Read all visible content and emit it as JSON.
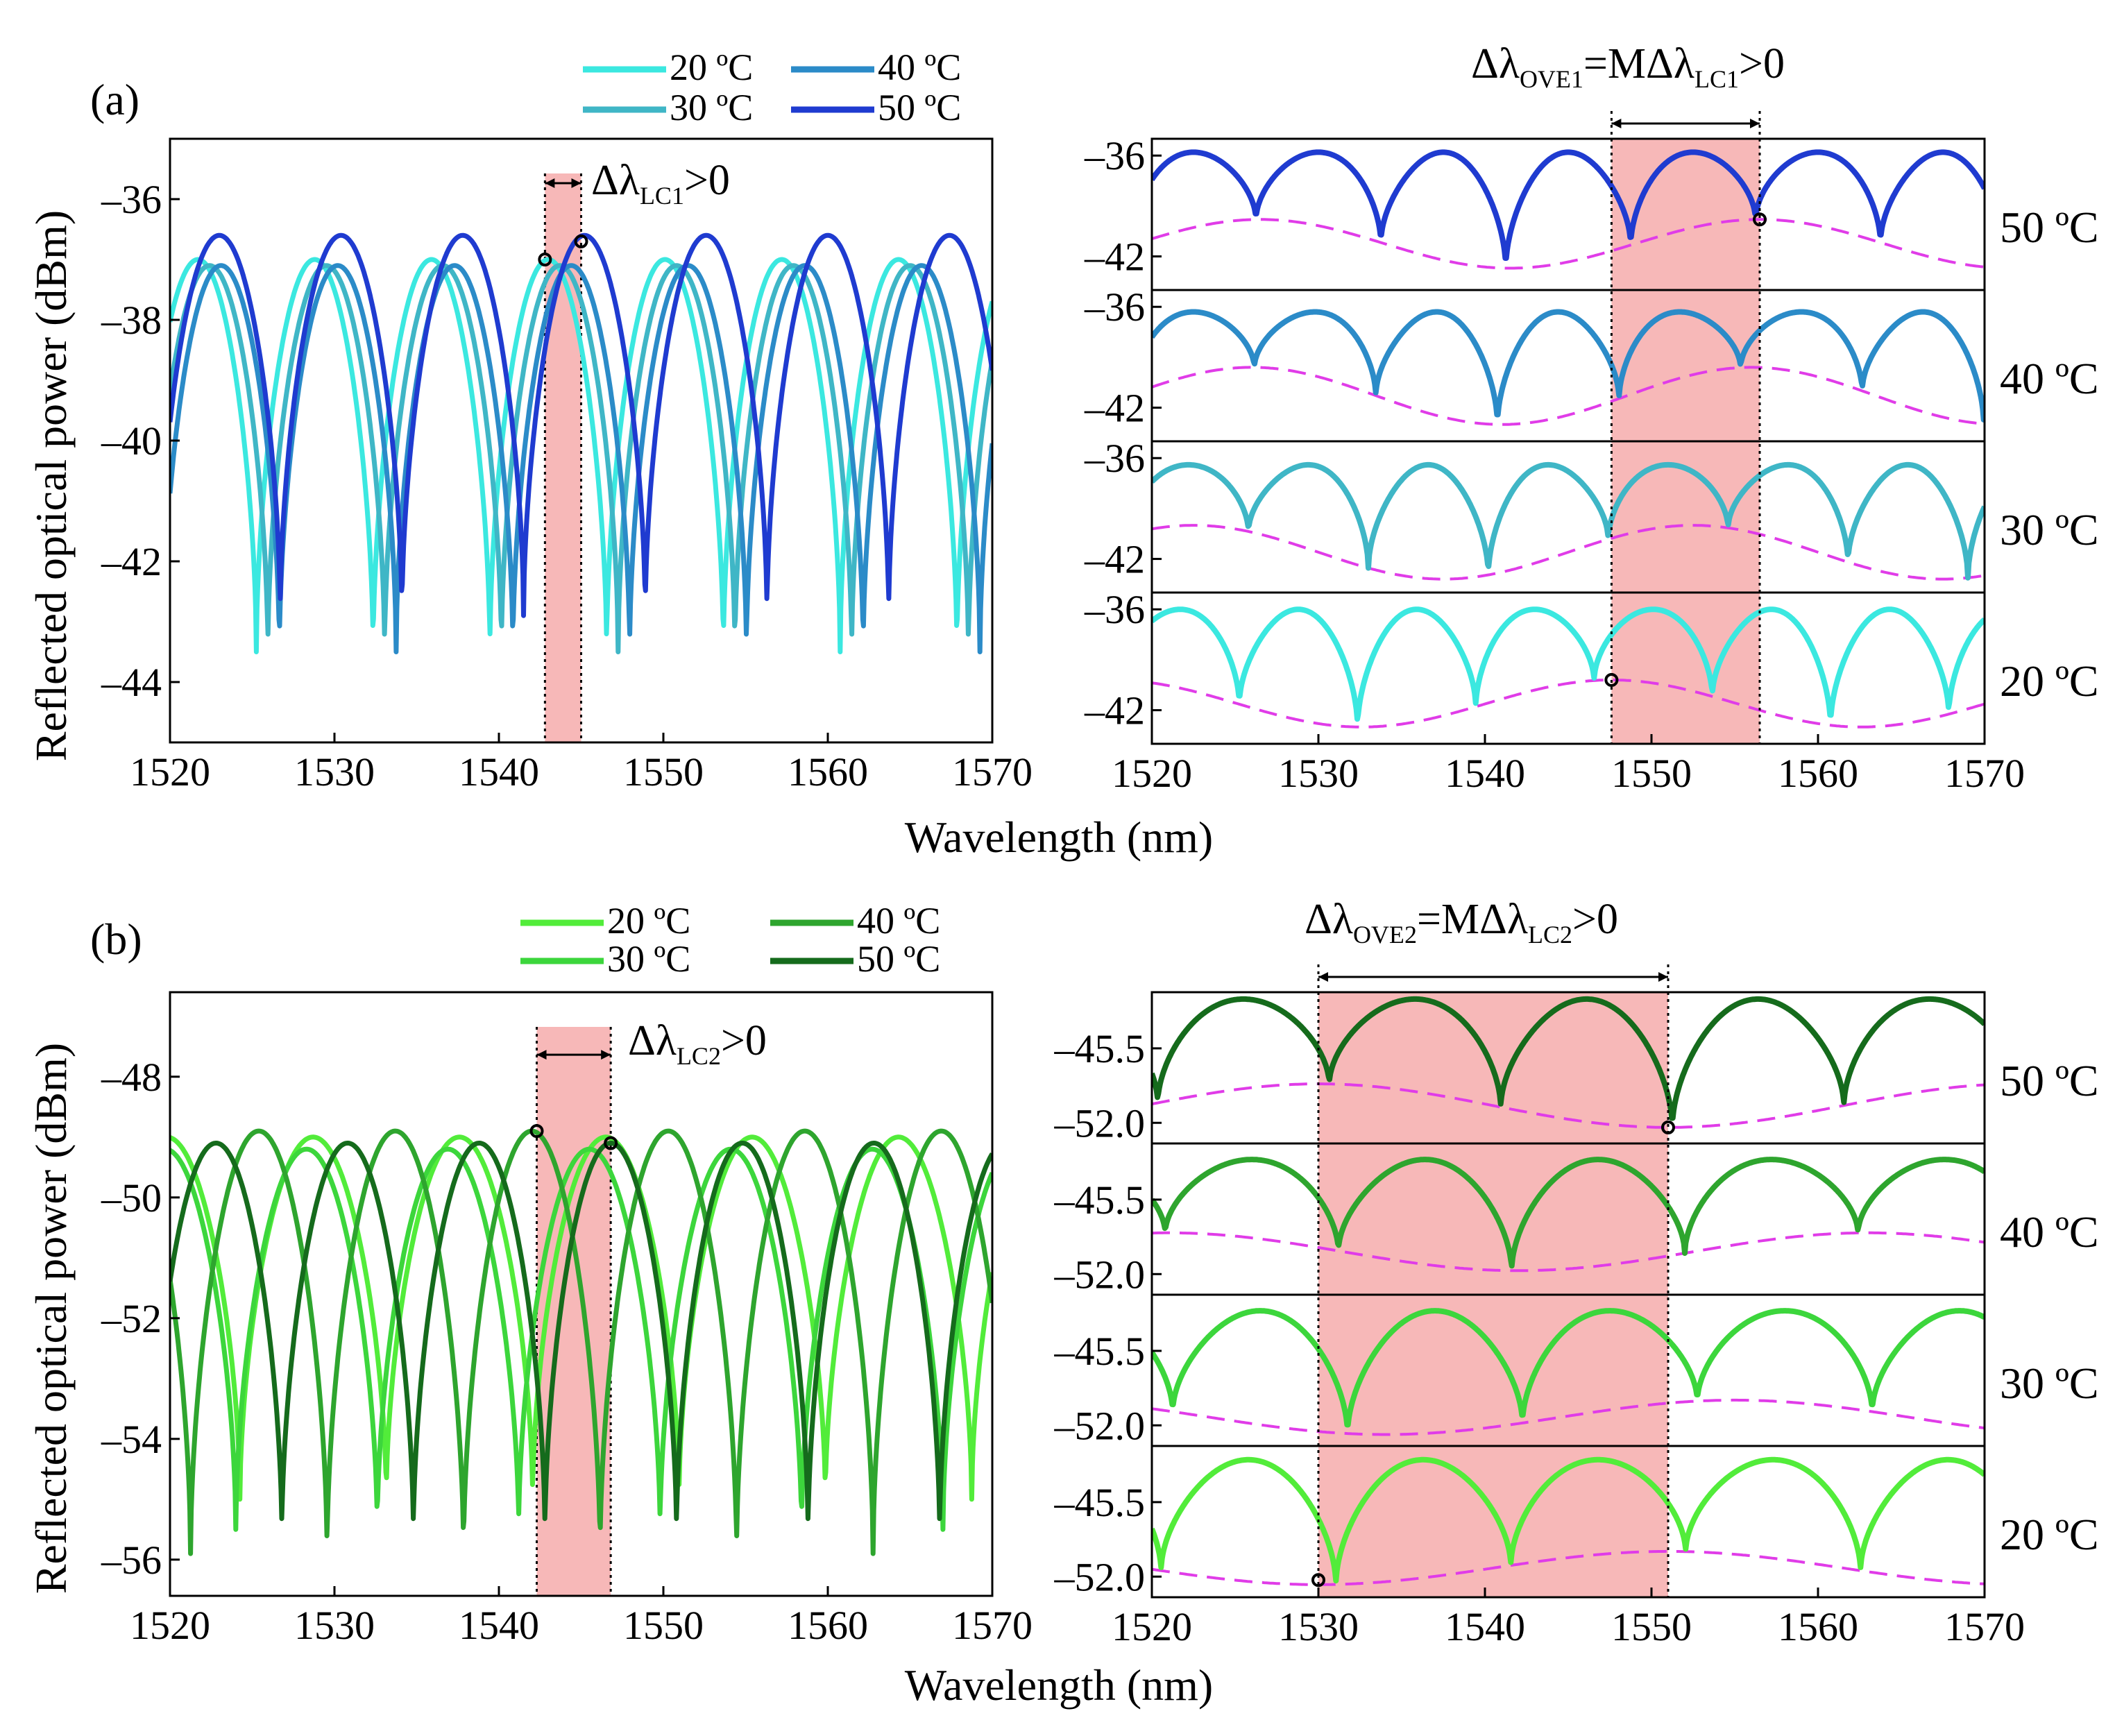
{
  "figure": {
    "panel_a_label": "(a)",
    "panel_b_label": "(b)",
    "xlabel": "Wavelength (nm)",
    "ylabel": "Reflected optical power (dBm)"
  },
  "chart_data": [
    {
      "id": "a-left",
      "type": "line",
      "title": "",
      "xlabel": "Wavelength (nm)",
      "ylabel": "Reflected optical power (dBm)",
      "xlim": [
        1520,
        1570
      ],
      "ylim": [
        -45,
        -35
      ],
      "xticks": [
        1520,
        1530,
        1540,
        1550,
        1560,
        1570
      ],
      "yticks": [
        -44,
        -42,
        -40,
        -38,
        -36
      ],
      "legend": [
        {
          "name": "20 ºC",
          "color": "#3be8e0"
        },
        {
          "name": "30 ºC",
          "color": "#3fb6c6"
        },
        {
          "name": "40 ºC",
          "color": "#2b8bc8"
        },
        {
          "name": "50 ºC",
          "color": "#1f3bd0"
        }
      ],
      "series": [
        {
          "name": "20 ºC",
          "color": "#3be8e0",
          "period": 7.1,
          "peak_x": 1543.0,
          "max": -37.0,
          "min": -43.5
        },
        {
          "name": "30 ºC",
          "color": "#3fb6c6",
          "period": 7.1,
          "peak_x": 1543.7,
          "max": -37.1,
          "min": -43.5
        },
        {
          "name": "40 ºC",
          "color": "#2b8bc8",
          "period": 7.1,
          "peak_x": 1544.4,
          "max": -37.1,
          "min": -43.5
        },
        {
          "name": "50 ºC",
          "color": "#1f3bd0",
          "period": 7.4,
          "peak_x": 1545.2,
          "max": -36.6,
          "min": -42.9
        }
      ],
      "shaded_region": [
        1542.8,
        1545.0
      ],
      "markers": [
        [
          1542.8,
          -37.0
        ],
        [
          1545.0,
          -36.7
        ]
      ],
      "annotation": {
        "text": "Δλ",
        "sub": "LC",
        "sub2": "1",
        "rest": ">0"
      }
    },
    {
      "id": "a-right",
      "type": "line",
      "xlabel": "Wavelength (nm)",
      "xlim": [
        1520,
        1570
      ],
      "xticks": [
        1520,
        1530,
        1540,
        1550,
        1560,
        1570
      ],
      "ylim": [
        -44,
        -35
      ],
      "yticks": [
        -36,
        -42
      ],
      "ytick_labels": [
        "-36",
        "-42"
      ],
      "shaded_region": [
        1547.6,
        1556.5
      ],
      "annotation": {
        "text": "Δλ",
        "sub": "OVE",
        "sub2": "1",
        "mid": "=MΔλ",
        "sub_b": "LC",
        "sub2_b": "1",
        "rest": ">0"
      },
      "subplots": [
        {
          "label": "50 ºC",
          "color": "#1f3bd0",
          "fast_period": 7.5,
          "fast_peak": 1545.0,
          "max": -35.8,
          "env_center": 1556.5,
          "env_period": 30,
          "env_max": -39.8,
          "env_min": -42.7,
          "marker": [
            1556.5,
            -39.8
          ]
        },
        {
          "label": "40 ºC",
          "color": "#2b8bc8",
          "fast_period": 7.3,
          "fast_peak": 1544.4,
          "max": -36.3,
          "env_center": 1556.0,
          "env_period": 30,
          "env_max": -39.6,
          "env_min": -43.0
        },
        {
          "label": "30 ºC",
          "color": "#3fb6c6",
          "fast_period": 7.2,
          "fast_peak": 1543.8,
          "max": -36.4,
          "env_center": 1552.5,
          "env_period": 30,
          "env_max": -40.0,
          "env_min": -43.2
        },
        {
          "label": "20 ºC",
          "color": "#3be8e0",
          "fast_period": 7.1,
          "fast_peak": 1543.0,
          "max": -36.0,
          "env_center": 1547.6,
          "env_period": 30,
          "env_max": -40.2,
          "env_min": -43.0,
          "marker": [
            1547.6,
            -40.2
          ]
        }
      ]
    },
    {
      "id": "b-left",
      "type": "line",
      "xlabel": "Wavelength (nm)",
      "ylabel": "Reflected optical power (dBm)",
      "xlim": [
        1520,
        1570
      ],
      "ylim": [
        -56.6,
        -46.6
      ],
      "xticks": [
        1520,
        1530,
        1540,
        1550,
        1560,
        1570
      ],
      "yticks": [
        -56,
        -54,
        -52,
        -50,
        -48
      ],
      "legend": [
        {
          "name": "20 ºC",
          "color": "#52ec3a"
        },
        {
          "name": "30 ºC",
          "color": "#3cd63c"
        },
        {
          "name": "40 ºC",
          "color": "#2ea52e"
        },
        {
          "name": "50 ºC",
          "color": "#156b1c"
        }
      ],
      "series": [
        {
          "name": "20 ºC",
          "color": "#52ec3a",
          "period": 8.9,
          "peak_x": 1546.5,
          "max": -49.0,
          "min": -55.0
        },
        {
          "name": "30 ºC",
          "color": "#3cd63c",
          "period": 8.6,
          "peak_x": 1545.5,
          "max": -49.2,
          "min": -55.5
        },
        {
          "name": "40 ºC",
          "color": "#2ea52e",
          "period": 8.3,
          "peak_x": 1542.0,
          "max": -48.9,
          "min": -55.9
        },
        {
          "name": "50 ºC",
          "color": "#156b1c",
          "period": 8.0,
          "peak_x": 1546.8,
          "max": -49.1,
          "min": -55.6
        }
      ],
      "shaded_region": [
        1542.3,
        1546.8
      ],
      "markers": [
        [
          1542.3,
          -48.9
        ],
        [
          1546.8,
          -49.1
        ]
      ],
      "annotation": {
        "text": "Δλ",
        "sub": "LC",
        "sub2": "2",
        "rest": ">0"
      }
    },
    {
      "id": "b-right",
      "type": "line",
      "xlabel": "Wavelength (nm)",
      "xlim": [
        1520,
        1570
      ],
      "xticks": [
        1520,
        1530,
        1540,
        1550,
        1560,
        1570
      ],
      "ylim": [
        -53.8,
        -40.6
      ],
      "yticks": [
        -45.5,
        -52.0
      ],
      "ytick_labels": [
        "-45.5",
        "-52.0"
      ],
      "shaded_region": [
        1530.0,
        1551.0
      ],
      "annotation": {
        "text": "Δλ",
        "sub": "OVE",
        "sub2": "2",
        "mid": "=MΔλ",
        "sub_b": "LC",
        "sub2_b": "2",
        "rest": ">0"
      },
      "subplots": [
        {
          "label": "50 ºC",
          "color": "#156b1c",
          "fast_period": 10.3,
          "fast_peak": 1525.5,
          "max": -41.2,
          "env_center": 1551.0,
          "env_period": 42,
          "env_max": -48.6,
          "env_min": -52.4,
          "env_phase": "min",
          "marker": [
            1551.0,
            -52.4
          ]
        },
        {
          "label": "40 ºC",
          "color": "#2ea52e",
          "fast_period": 10.4,
          "fast_peak": 1526.0,
          "max": -42.0,
          "env_center": 1542.0,
          "env_period": 42,
          "env_max": -48.4,
          "env_min": -51.7,
          "env_phase": "min"
        },
        {
          "label": "30 ºC",
          "color": "#3cd63c",
          "fast_period": 10.5,
          "fast_peak": 1526.5,
          "max": -42.0,
          "env_center": 1555.0,
          "env_period": 42,
          "env_max": -49.8,
          "env_min": -52.8,
          "env_phase": "max"
        },
        {
          "label": "20 ºC",
          "color": "#52ec3a",
          "fast_period": 10.5,
          "fast_peak": 1525.8,
          "max": -41.8,
          "env_center": 1551.0,
          "env_period": 42,
          "env_max": -49.8,
          "env_min": -52.7,
          "env_phase": "max",
          "marker": [
            1530.0,
            -52.3
          ]
        }
      ]
    }
  ]
}
